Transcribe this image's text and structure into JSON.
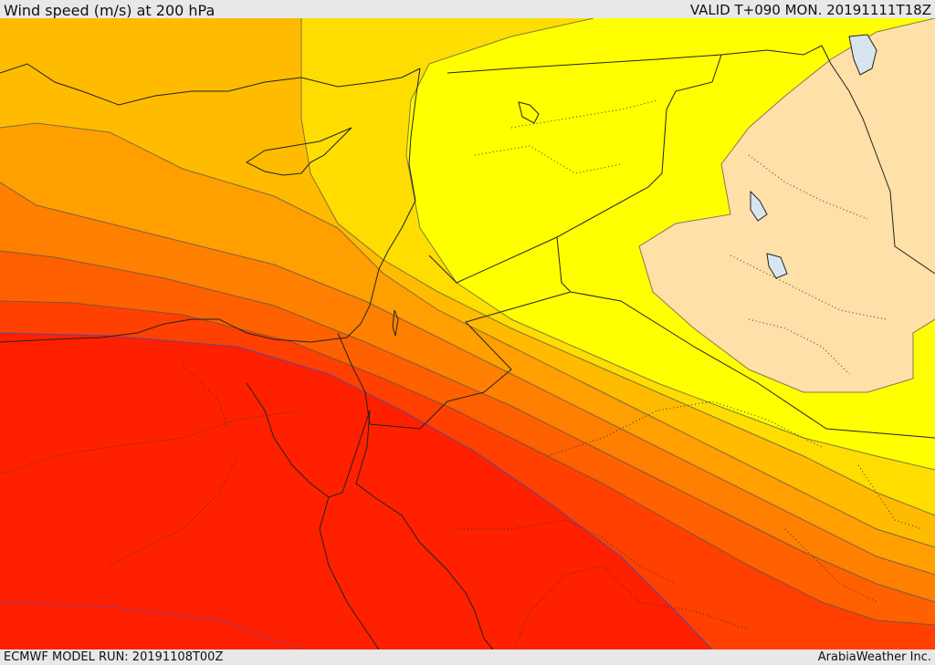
{
  "header": {
    "title": "Wind speed (m/s) at 200 hPa",
    "valid": "VALID T+090 MON. 20191111T18Z"
  },
  "footer": {
    "model_run": "ECMWF MODEL RUN: 20191108T00Z",
    "credit": "ArabiaWeather Inc."
  },
  "colors": {
    "lt20": "#ffe0a8",
    "b20_25": "#ffff00",
    "b25_30": "#ffdd00",
    "b30_35": "#ffbb00",
    "b35_40": "#ff9f00",
    "b40_45": "#ff8000",
    "b45_50": "#ff6000",
    "b50_55": "#ff4000",
    "gt55": "#ff2000",
    "lake": "#d8e4ee"
  }
}
